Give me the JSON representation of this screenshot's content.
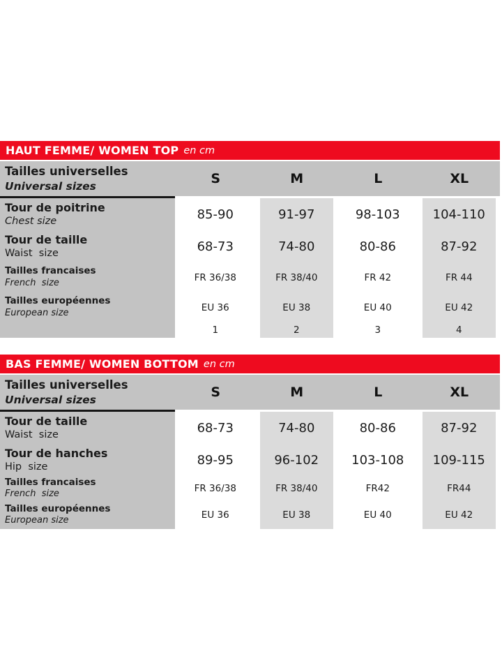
{
  "colors": {
    "red": "#ee0b1f",
    "gray-header": "#c3c3c3",
    "gray-cell": "#dbdbdb",
    "text": "#1a1a1a"
  },
  "tables": [
    {
      "title": "HAUT FEMME/ WOMEN TOP",
      "unit": "en cm",
      "header": {
        "label_fr": "Tailles universelles",
        "label_en": "Universal sizes",
        "columns": [
          "S",
          "M",
          "L",
          "XL"
        ]
      },
      "rows": [
        {
          "label_fr": "Tour de poitrine",
          "label_en": "Chest size",
          "values": [
            "85-90",
            "91-97",
            "98-103",
            "104-110"
          ]
        },
        {
          "label_fr": "Tour de taille",
          "label_en": "Waist  size",
          "values": [
            "68-73",
            "74-80",
            "80-86",
            "87-92"
          ]
        },
        {
          "label_fr": "Tailles francaises",
          "label_en": "French  size",
          "values": [
            "FR 36/38",
            "FR 38/40",
            "FR 42",
            "FR 44"
          ]
        },
        {
          "label_fr": "Tailles européennes",
          "label_en": "European size",
          "values": [
            "EU 36",
            "EU 38",
            "EU 40",
            "EU 42"
          ]
        },
        {
          "label_fr": "",
          "label_en": "",
          "values": [
            "1",
            "2",
            "3",
            "4"
          ]
        }
      ]
    },
    {
      "title": "BAS FEMME/ WOMEN BOTTOM",
      "unit": "en cm",
      "header": {
        "label_fr": "Tailles universelles",
        "label_en": "Universal sizes",
        "columns": [
          "S",
          "M",
          "L",
          "XL"
        ]
      },
      "rows": [
        {
          "label_fr": "Tour de taille",
          "label_en": "Waist  size",
          "values": [
            "68-73",
            "74-80",
            "80-86",
            "87-92"
          ]
        },
        {
          "label_fr": "Tour de hanches",
          "label_en": "Hip  size",
          "values": [
            "89-95",
            "96-102",
            "103-108",
            "109-115"
          ]
        },
        {
          "label_fr": "Tailles francaises",
          "label_en": "French  size",
          "values": [
            "FR 36/38",
            "FR 38/40",
            "FR42",
            "FR44"
          ]
        },
        {
          "label_fr": "Tailles européennes",
          "label_en": "European size",
          "values": [
            "EU 36",
            "EU 38",
            "EU 40",
            "EU 42"
          ]
        }
      ]
    }
  ]
}
